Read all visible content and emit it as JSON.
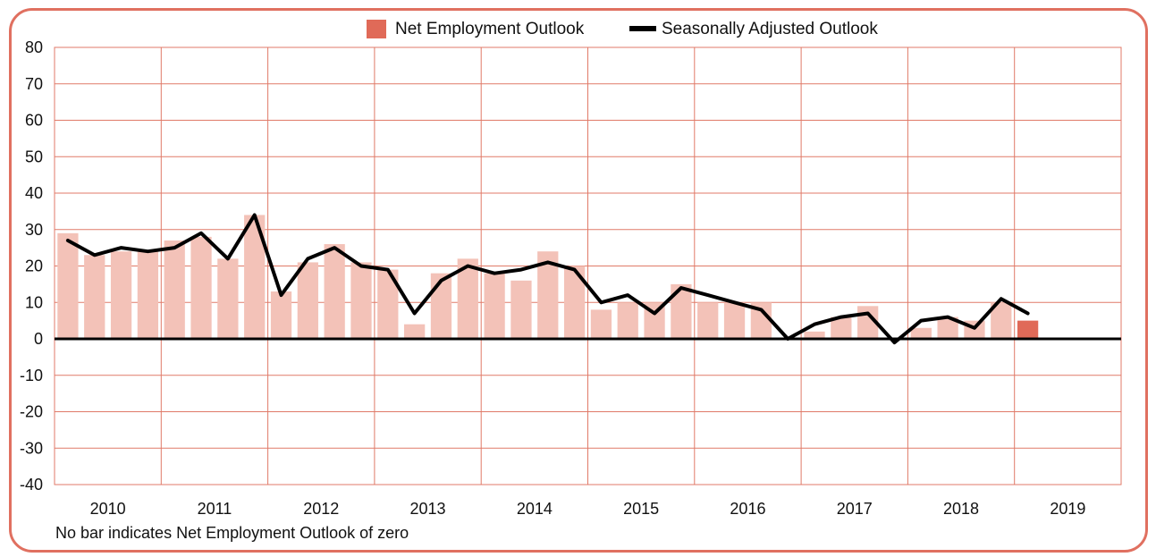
{
  "chart_data": {
    "type": "bar",
    "title": "",
    "xlabel": "",
    "ylabel": "",
    "ylim": [
      -40,
      80
    ],
    "yticks": [
      80,
      70,
      60,
      50,
      40,
      30,
      20,
      10,
      0,
      -10,
      -20,
      -30,
      -40
    ],
    "grid": true,
    "legend_position": "top-center",
    "year_labels": [
      "2010",
      "2011",
      "2012",
      "2013",
      "2014",
      "2015",
      "2016",
      "2017",
      "2018",
      "2019"
    ],
    "quarters": [
      "2010-Q1",
      "2010-Q2",
      "2010-Q3",
      "2010-Q4",
      "2011-Q1",
      "2011-Q2",
      "2011-Q3",
      "2011-Q4",
      "2012-Q1",
      "2012-Q2",
      "2012-Q3",
      "2012-Q4",
      "2013-Q1",
      "2013-Q2",
      "2013-Q3",
      "2013-Q4",
      "2014-Q1",
      "2014-Q2",
      "2014-Q3",
      "2014-Q4",
      "2015-Q1",
      "2015-Q2",
      "2015-Q3",
      "2015-Q4",
      "2016-Q1",
      "2016-Q2",
      "2016-Q3",
      "2016-Q4",
      "2017-Q1",
      "2017-Q2",
      "2017-Q3",
      "2017-Q4",
      "2018-Q1",
      "2018-Q2",
      "2018-Q3",
      "2018-Q4",
      "2019-Q1"
    ],
    "series": [
      {
        "name": "Net Employment Outlook",
        "kind": "bar",
        "color": "#f3c2b8",
        "highlight_color": "#e06a58",
        "highlight_index": 36,
        "values": [
          29,
          23,
          24,
          24,
          27,
          28,
          22,
          34,
          13,
          21,
          26,
          21,
          19,
          4,
          18,
          22,
          18,
          16,
          24,
          20,
          8,
          10,
          10,
          15,
          10,
          10,
          10,
          0,
          2,
          6,
          9,
          0,
          3,
          6,
          5,
          10,
          5
        ]
      },
      {
        "name": "Seasonally Adjusted Outlook",
        "kind": "line",
        "color": "#000000",
        "values": [
          27,
          23,
          25,
          24,
          25,
          29,
          22,
          34,
          12,
          22,
          25,
          20,
          19,
          7,
          16,
          20,
          18,
          19,
          21,
          19,
          10,
          12,
          7,
          14,
          12,
          10,
          8,
          0,
          4,
          6,
          7,
          -1,
          5,
          6,
          3,
          11,
          7
        ]
      }
    ],
    "note": "No bar indicates Net Employment Outlook of zero"
  }
}
